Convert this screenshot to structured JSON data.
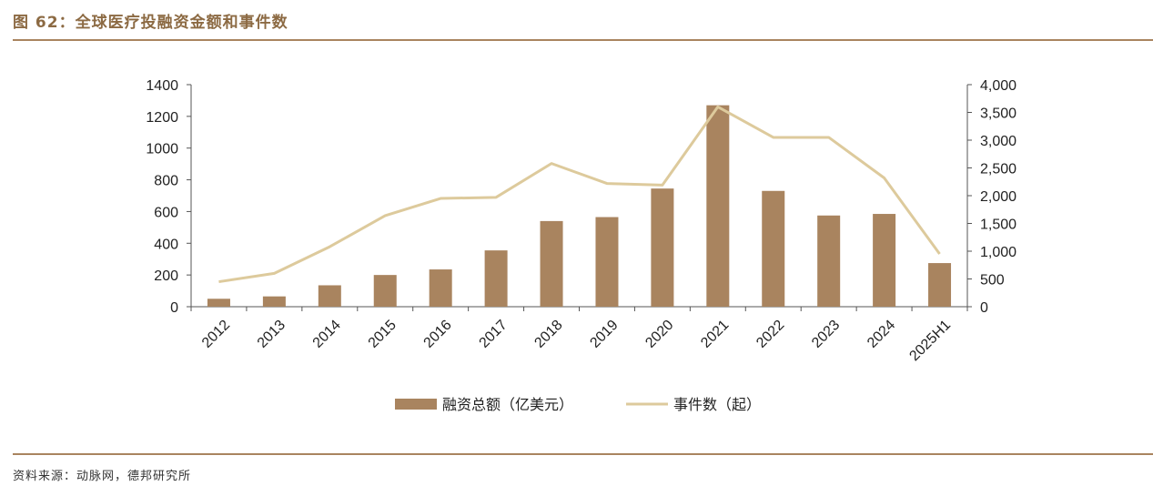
{
  "figure": {
    "title": "图 62：全球医疗投融资金额和事件数",
    "source": "资料来源：动脉网，德邦研究所"
  },
  "colors": {
    "bar": "#a9845f",
    "line": "#ddca9c",
    "axis": "#555555",
    "title": "#8c6a43"
  },
  "chart_data": {
    "type": "bar",
    "categories": [
      "2012",
      "2013",
      "2014",
      "2015",
      "2016",
      "2017",
      "2018",
      "2019",
      "2020",
      "2021",
      "2022",
      "2023",
      "2024",
      "2025H1"
    ],
    "series": [
      {
        "name": "融资总额（亿美元）",
        "type": "bar",
        "axis": "left",
        "values": [
          50,
          65,
          135,
          200,
          235,
          355,
          540,
          565,
          745,
          1270,
          730,
          575,
          585,
          275
        ]
      },
      {
        "name": "事件数（起）",
        "type": "line",
        "axis": "right",
        "values": [
          450,
          600,
          1080,
          1640,
          1950,
          1970,
          2580,
          2220,
          2190,
          3600,
          3050,
          3050,
          2320,
          950
        ]
      }
    ],
    "y_left": {
      "lim": [
        0,
        1400
      ],
      "ticks": [
        "0",
        "200",
        "400",
        "600",
        "800",
        "1000",
        "1200",
        "1400"
      ]
    },
    "y_right": {
      "lim": [
        0,
        4000
      ],
      "ticks": [
        "0",
        "500",
        "1,000",
        "1,500",
        "2,000",
        "2,500",
        "3,000",
        "3,500",
        "4,000"
      ]
    },
    "grid": false,
    "legend_position": "bottom"
  }
}
